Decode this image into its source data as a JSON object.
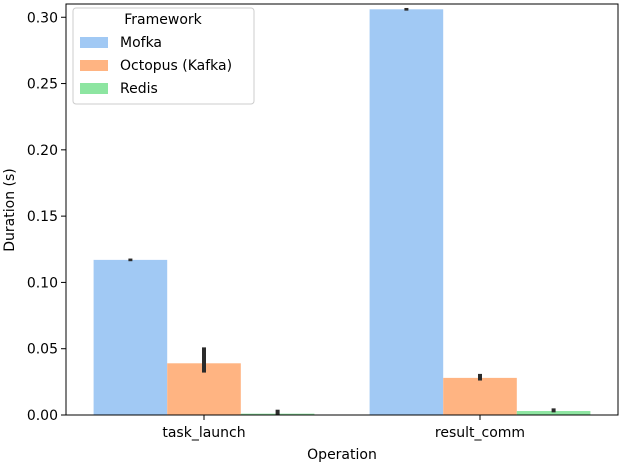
{
  "chart_data": {
    "type": "bar",
    "xlabel": "Operation",
    "ylabel": "Duration (s)",
    "categories": [
      "task_launch",
      "result_comm"
    ],
    "ylim": [
      0,
      0.31
    ],
    "yticks": [
      0.0,
      0.05,
      0.1,
      0.15,
      0.2,
      0.25,
      0.3
    ],
    "ytick_labels": [
      "0.00",
      "0.05",
      "0.10",
      "0.15",
      "0.20",
      "0.25",
      "0.30"
    ],
    "grid": false,
    "legend": {
      "title": "Framework",
      "placement": "top-left"
    },
    "series": [
      {
        "name": "Mofka",
        "color": "#a1c9f4",
        "values": [
          0.117,
          0.306
        ],
        "err_low": [
          0.116,
          0.305
        ],
        "err_high": [
          0.118,
          0.307
        ]
      },
      {
        "name": "Octopus (Kafka)",
        "color": "#ffb482",
        "values": [
          0.039,
          0.028
        ],
        "err_low": [
          0.032,
          0.026
        ],
        "err_high": [
          0.051,
          0.031
        ]
      },
      {
        "name": "Redis",
        "color": "#8de5a1",
        "values": [
          0.001,
          0.003
        ],
        "err_low": [
          0.0,
          0.002
        ],
        "err_high": [
          0.004,
          0.005
        ]
      }
    ]
  }
}
